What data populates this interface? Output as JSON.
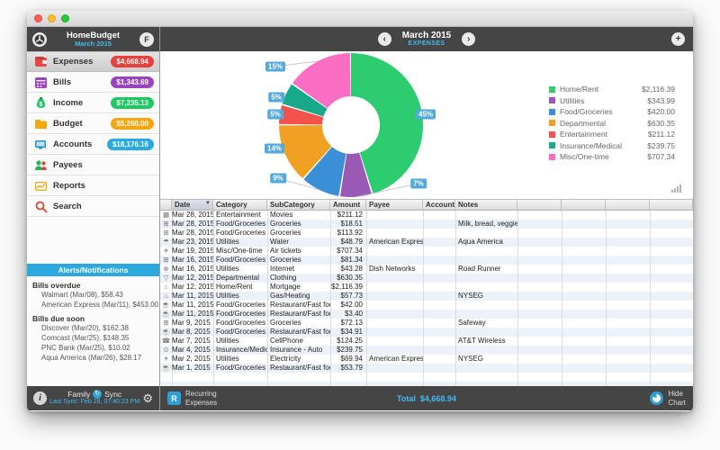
{
  "titlebar": {
    "controls": [
      "close",
      "minimize",
      "zoom"
    ]
  },
  "sidebar": {
    "header": {
      "app": "HomeBudget",
      "period": "March 2015",
      "left_icon": "tools-icon",
      "right_icon": "profile-icon"
    },
    "items": [
      {
        "label": "Expenses",
        "amount": "$4,668.94",
        "badge_color": "#e8403a",
        "icon": "wallet-icon",
        "selected": true
      },
      {
        "label": "Bills",
        "amount": "$1,343.69",
        "badge_color": "#9b44c0",
        "icon": "calendar-icon",
        "selected": false
      },
      {
        "label": "Income",
        "amount": "$7,235.13",
        "badge_color": "#1fc961",
        "icon": "moneybag-icon",
        "selected": false
      },
      {
        "label": "Budget",
        "amount": "$5,260.00",
        "badge_color": "#f5a60a",
        "icon": "folder-icon",
        "selected": false
      },
      {
        "label": "Accounts",
        "amount": "$18,176.16",
        "badge_color": "#29abe2",
        "icon": "monitor-icon",
        "selected": false
      },
      {
        "label": "Payees",
        "amount": "",
        "badge_color": "",
        "icon": "people-icon",
        "selected": false
      },
      {
        "label": "Reports",
        "amount": "",
        "badge_color": "",
        "icon": "report-chart-icon",
        "selected": false
      },
      {
        "label": "Search",
        "amount": "",
        "badge_color": "",
        "icon": "search-icon",
        "selected": false
      }
    ],
    "alerts": {
      "title": "Alerts/Notifications",
      "sections": [
        {
          "heading": "Bills overdue",
          "entries": [
            "Walmart (Mar/08), $58.43",
            "American Express (Mar/11), $453.00"
          ]
        },
        {
          "heading": "Bills due soon",
          "entries": [
            "Discover (Mar/20), $162.38",
            "Comcast (Mar/25), $148.35",
            "PNC Bank (Mar/25), $10.02",
            "Aqua America (Mar/26), $28.17"
          ]
        }
      ]
    },
    "footer": {
      "family_label": "Family",
      "sync_label": "Sync",
      "last_sync": "Last Sync: Feb 28, 07:40:23 PM"
    }
  },
  "main": {
    "header": {
      "period": "March 2015",
      "view": "EXPENSES"
    },
    "chart_data": {
      "type": "pie",
      "title": "March 2015 Expenses by Category",
      "legend_position": "right",
      "total": "$4,668.94",
      "slices": [
        {
          "name": "Home/Rent",
          "value": 2116.39,
          "percent_label": "45%",
          "amount_label": "$2,116.39",
          "color": "#2ecc71"
        },
        {
          "name": "Utilities",
          "value": 343.99,
          "percent_label": "7%",
          "amount_label": "$343.99",
          "color": "#9b59b6"
        },
        {
          "name": "Food/Groceries",
          "value": 420.0,
          "percent_label": "9%",
          "amount_label": "$420.00",
          "color": "#3b8fd6"
        },
        {
          "name": "Departmental",
          "value": 630.35,
          "percent_label": "14%",
          "amount_label": "$630.35",
          "color": "#f0a023"
        },
        {
          "name": "Entertainment",
          "value": 211.12,
          "percent_label": "5%",
          "amount_label": "$211.12",
          "color": "#f4524d"
        },
        {
          "name": "Insurance/Medical",
          "value": 239.75,
          "percent_label": "5%",
          "amount_label": "$239.75",
          "color": "#18a98b"
        },
        {
          "name": "Misc/One-time",
          "value": 707.34,
          "percent_label": "15%",
          "amount_label": "$707.34",
          "color": "#fb6ec4"
        }
      ]
    },
    "table": {
      "columns": [
        "Date",
        "Category",
        "SubCategory",
        "Amount",
        "Payee",
        "Account",
        "Notes"
      ],
      "sorted_column": "Date",
      "rows": [
        {
          "icon": "film-icon",
          "date": "Mar 28, 2015",
          "category": "Entertainment",
          "subcategory": "Movies",
          "amount": "$211.12",
          "payee": "",
          "account": "",
          "notes": ""
        },
        {
          "icon": "cart-icon",
          "date": "Mar 28, 2015",
          "category": "Food/Groceries",
          "subcategory": "Groceries",
          "amount": "$18.51",
          "payee": "",
          "account": "",
          "notes": "Milk, bread, veggies."
        },
        {
          "icon": "cart-icon",
          "date": "Mar 28, 2015",
          "category": "Food/Groceries",
          "subcategory": "Groceries",
          "amount": "$113.92",
          "payee": "",
          "account": "",
          "notes": ""
        },
        {
          "icon": "water-icon",
          "date": "Mar 23, 2015",
          "category": "Utilities",
          "subcategory": "Water",
          "amount": "$48.79",
          "payee": "American Express",
          "account": "",
          "notes": "Aqua America"
        },
        {
          "icon": "plane-icon",
          "date": "Mar 19, 2015",
          "category": "Misc/One-time",
          "subcategory": "Air tickets",
          "amount": "$707.34",
          "payee": "",
          "account": "",
          "notes": ""
        },
        {
          "icon": "cart-icon",
          "date": "Mar 16, 2015",
          "category": "Food/Groceries",
          "subcategory": "Groceries",
          "amount": "$81.34",
          "payee": "",
          "account": "",
          "notes": ""
        },
        {
          "icon": "globe-icon",
          "date": "Mar 16, 2015",
          "category": "Utilities",
          "subcategory": "Internet",
          "amount": "$43.28",
          "payee": "Dish Networks",
          "account": "",
          "notes": "Road Runner"
        },
        {
          "icon": "shirt-icon",
          "date": "Mar 12, 2015",
          "category": "Departmental",
          "subcategory": "Clothing",
          "amount": "$630.35",
          "payee": "",
          "account": "",
          "notes": ""
        },
        {
          "icon": "house-icon",
          "date": "Mar 12, 2015",
          "category": "Home/Rent",
          "subcategory": "Mortgage",
          "amount": "$2,116.39",
          "payee": "",
          "account": "",
          "notes": ""
        },
        {
          "icon": "flame-icon",
          "date": "Mar 11, 2015",
          "category": "Utilities",
          "subcategory": "Gas/Heating",
          "amount": "$57.73",
          "payee": "",
          "account": "",
          "notes": "NYSEG"
        },
        {
          "icon": "food-icon",
          "date": "Mar 11, 2015",
          "category": "Food/Groceries",
          "subcategory": "Restaurant/Fast food",
          "amount": "$42.00",
          "payee": "",
          "account": "",
          "notes": ""
        },
        {
          "icon": "food-icon",
          "date": "Mar 11, 2015",
          "category": "Food/Groceries",
          "subcategory": "Restaurant/Fast food",
          "amount": "$3.40",
          "payee": "",
          "account": "",
          "notes": ""
        },
        {
          "icon": "cart-icon",
          "date": "Mar 9, 2015",
          "category": "Food/Groceries",
          "subcategory": "Groceries",
          "amount": "$72.13",
          "payee": "",
          "account": "",
          "notes": "Safeway"
        },
        {
          "icon": "food-icon",
          "date": "Mar 8, 2015",
          "category": "Food/Groceries",
          "subcategory": "Restaurant/Fast food",
          "amount": "$34.91",
          "payee": "",
          "account": "",
          "notes": ""
        },
        {
          "icon": "phone-icon",
          "date": "Mar 7, 2015",
          "category": "Utilities",
          "subcategory": "CellPhone",
          "amount": "$124.25",
          "payee": "",
          "account": "",
          "notes": "AT&T Wireless"
        },
        {
          "icon": "car-icon",
          "date": "Mar 4, 2015",
          "category": "Insurance/Medical",
          "subcategory": "Insurance - Auto",
          "amount": "$239.75",
          "payee": "",
          "account": "",
          "notes": ""
        },
        {
          "icon": "bulb-icon",
          "date": "Mar 2, 2015",
          "category": "Utilities",
          "subcategory": "Electricity",
          "amount": "$69.94",
          "payee": "American Express",
          "account": "",
          "notes": "NYSEG"
        },
        {
          "icon": "food-icon",
          "date": "Mar 1, 2015",
          "category": "Food/Groceries",
          "subcategory": "Restaurant/Fast food",
          "amount": "$53.79",
          "payee": "",
          "account": "",
          "notes": ""
        }
      ]
    },
    "footer": {
      "recurring_line1": "Recurring",
      "recurring_line2": "Expenses",
      "total_label": "Total",
      "total_value": "$4,668.94",
      "hide_line1": "Hide",
      "hide_line2": "Chart"
    }
  },
  "icons": {
    "profile": "F",
    "add": "+",
    "chevron_left": "‹",
    "chevron_right": "›",
    "gear": "⚙",
    "info": "i",
    "sync": "↻",
    "recurring": "R",
    "sort_desc": "▼"
  }
}
